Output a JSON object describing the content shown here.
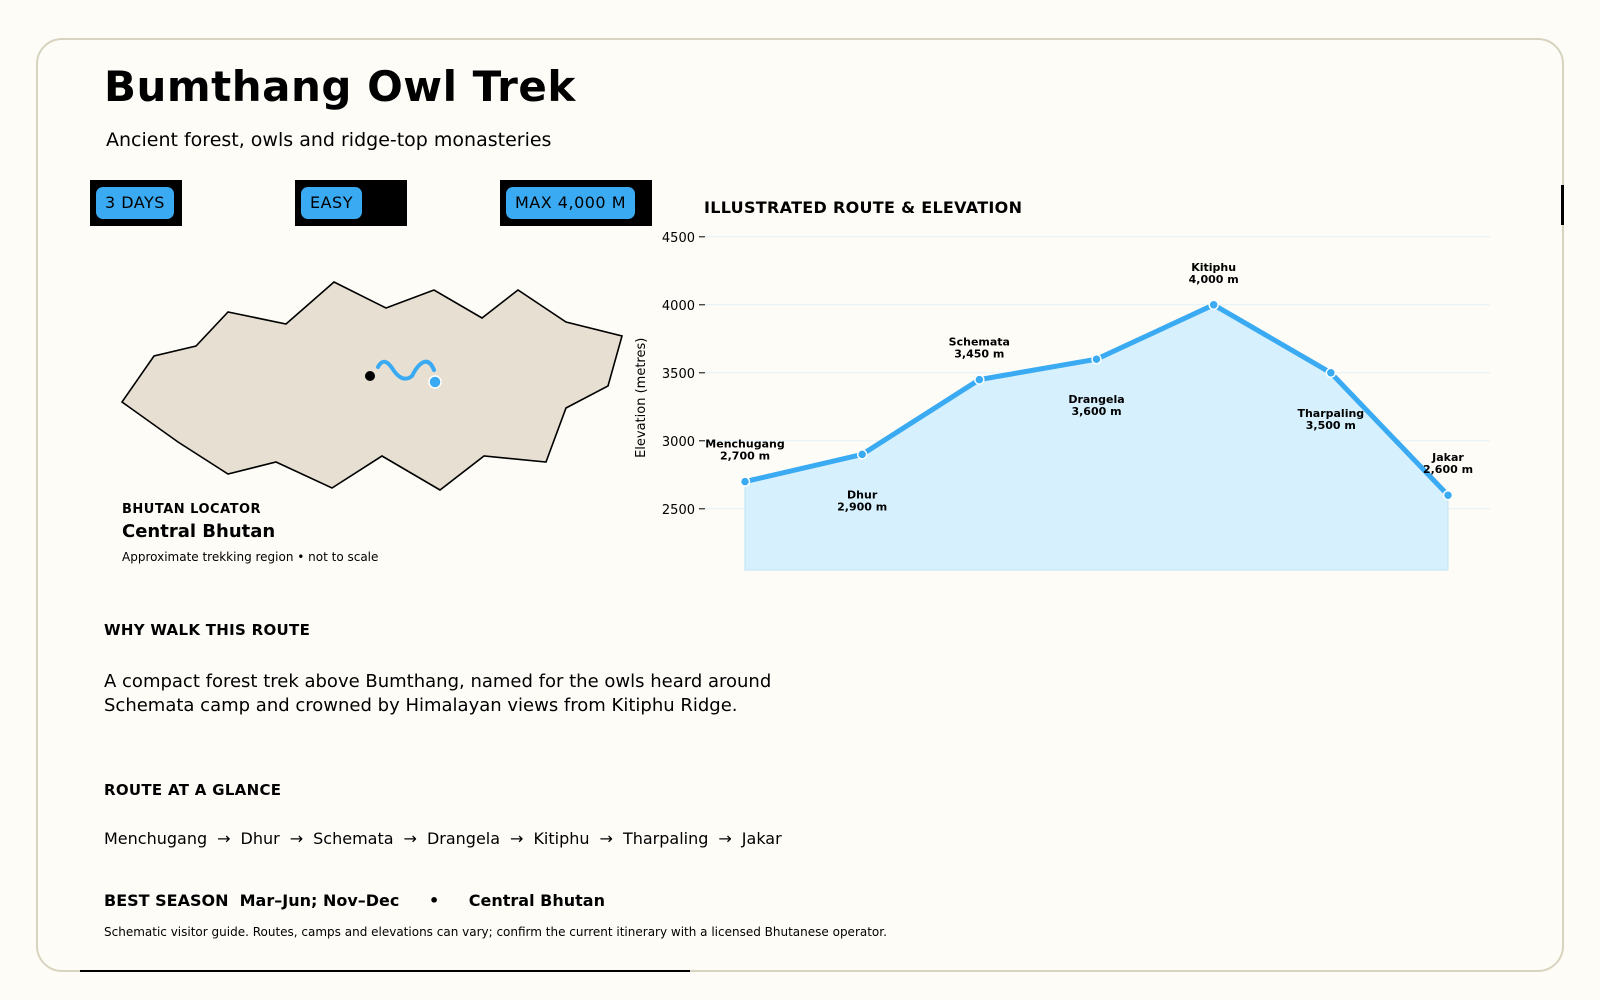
{
  "header": {
    "title": "Bumthang Owl Trek",
    "subtitle": "Ancient forest, owls and ridge-top monasteries"
  },
  "badges": [
    {
      "label": "3 DAYS"
    },
    {
      "label": "EASY"
    },
    {
      "label": "MAX 4,000 M"
    }
  ],
  "locator": {
    "kicker": "BHUTAN LOCATOR",
    "region": "Central Bhutan",
    "note": "Approximate trekking region • not to scale",
    "fill_color": "#e6dfd2",
    "route_color": "#3aaaf2"
  },
  "chart_data": {
    "type": "area",
    "title": "ILLUSTRATED ROUTE & ELEVATION",
    "ylabel": "Elevation (metres)",
    "xlabel": "",
    "ylim": [
      2050,
      4550
    ],
    "yticks": [
      2500,
      3000,
      3500,
      4000,
      4500
    ],
    "grid": true,
    "line_color": "#3aaaf2",
    "fill_color": "#d6f0fd",
    "points": [
      {
        "name": "Menchugang",
        "label": "2,700 m",
        "value": 2700
      },
      {
        "name": "Dhur",
        "label": "2,900 m",
        "value": 2900
      },
      {
        "name": "Schemata",
        "label": "3,450 m",
        "value": 3450
      },
      {
        "name": "Drangela",
        "label": "3,600 m",
        "value": 3600
      },
      {
        "name": "Kitiphu",
        "label": "4,000 m",
        "value": 4000
      },
      {
        "name": "Tharpaling",
        "label": "3,500 m",
        "value": 3500
      },
      {
        "name": "Jakar",
        "label": "2,600 m",
        "value": 2600
      }
    ]
  },
  "why": {
    "heading": "WHY WALK THIS ROUTE",
    "text": "A compact forest trek above Bumthang, named for the owls heard around Schemata camp and crowned by Himalayan views from Kitiphu Ridge."
  },
  "route": {
    "heading": "ROUTE AT A GLANCE",
    "arrow": "→",
    "stops": [
      "Menchugang",
      "Dhur",
      "Schemata",
      "Drangela",
      "Kitiphu",
      "Tharpaling",
      "Jakar"
    ]
  },
  "season": {
    "label": "BEST SEASON",
    "value": "Mar–Jun; Nov–Dec",
    "separator": "•",
    "region": "Central Bhutan"
  },
  "disclaimer": "Schematic visitor guide. Routes, camps and elevations can vary; confirm the current itinerary with a licensed Bhutanese operator."
}
